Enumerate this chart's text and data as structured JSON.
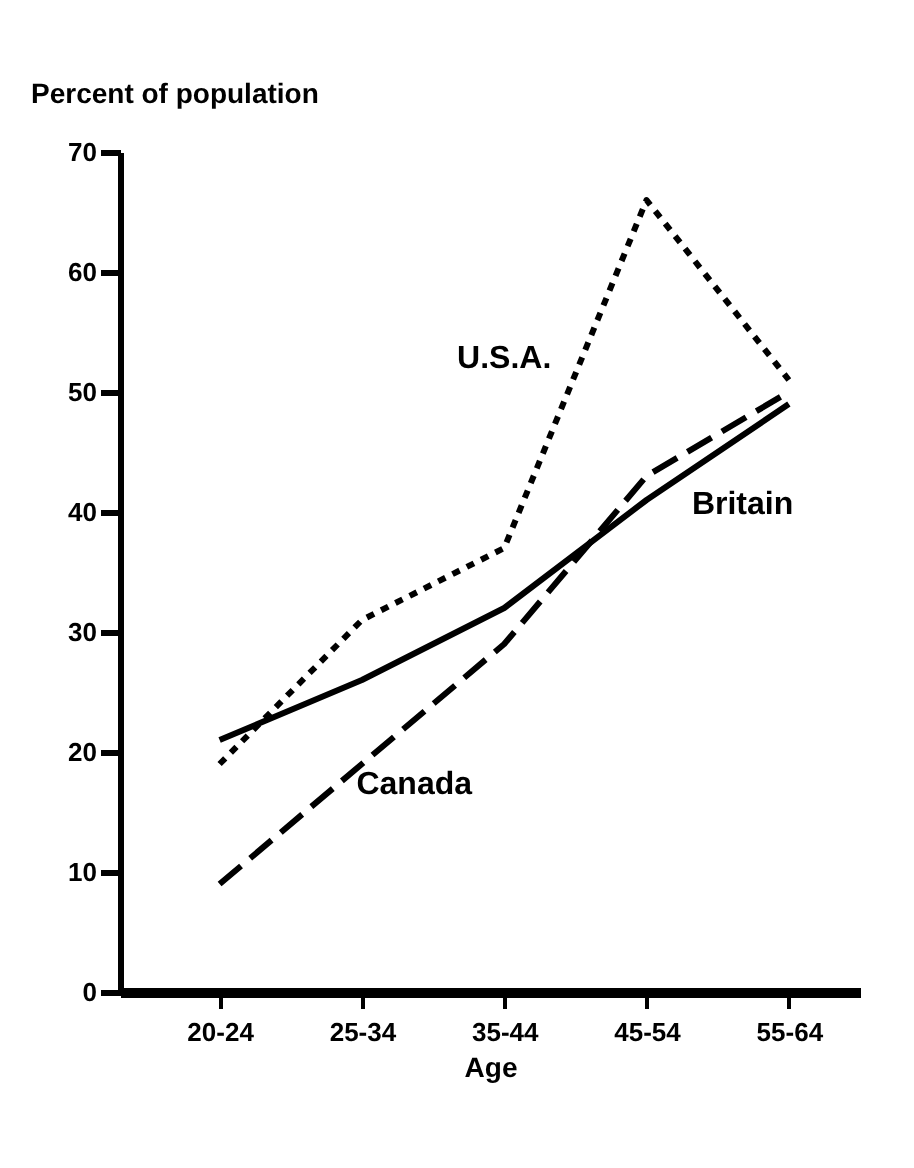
{
  "chart_data": {
    "type": "line",
    "xlabel": "Age",
    "ylabel": "Percent of population",
    "categories": [
      "20-24",
      "25-34",
      "35-44",
      "45-54",
      "55-64"
    ],
    "series": [
      {
        "name": "U.S.A.",
        "color": "#000000",
        "line_style": "dotted",
        "values": [
          19,
          31,
          37,
          66,
          51
        ]
      },
      {
        "name": "Britain",
        "color": "#000000",
        "line_style": "solid",
        "values": [
          21,
          26,
          32,
          41,
          49
        ]
      },
      {
        "name": "Canada",
        "color": "#000000",
        "line_style": "dashed",
        "values": [
          9,
          19,
          29,
          43,
          50
        ]
      }
    ],
    "ylim": [
      0,
      70
    ],
    "yticks": [
      0,
      10,
      20,
      30,
      40,
      50,
      60,
      70
    ],
    "grid": false,
    "marker": "none"
  }
}
